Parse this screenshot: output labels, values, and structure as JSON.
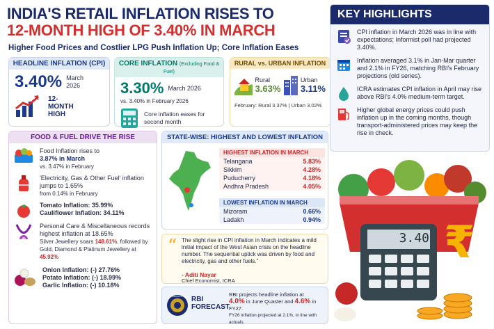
{
  "title_line1": "INDIA'S RETAIL INFLATION RISES TO",
  "title_line2": "12-MONTH HIGH OF 3.40% IN MARCH",
  "subtitle": "Higher Food Prices and Costlier LPG Push Inflation Up; Core Inflation Eases",
  "headline": {
    "label": "HEADLINE INFLATION (CPI)",
    "value": "3.40%",
    "period": "March 2026",
    "tag": "12-MONTH HIGH"
  },
  "core": {
    "label": "CORE INFLATION",
    "label_note": "(Excluding Food & Fuel)",
    "value": "3.30%",
    "period": "March 2026",
    "compare": "vs. 3.40% in February 2026",
    "note": "Core inflation eases for second month"
  },
  "rural_urban": {
    "label": "RURAL vs. URBAN INFLATION",
    "rural_label": "Rural",
    "rural_value": "3.63%",
    "urban_label": "Urban",
    "urban_value": "3.11%",
    "feb": "February: Rural 3.37% | Urban 3.02%"
  },
  "highlights": {
    "heading": "KEY HIGHLIGHTS",
    "items": [
      "CPI inflation in March 2026 was in line with expectations; Informist poll had projected 3.40%.",
      "Inflation averaged 3.1% in Jan-Mar quarter and 2.1% in FY26, matching RBI's February projections (old series).",
      "ICRA estimates CPI inflation in April may rise above RBI's 4.0% medium-term target.",
      "Higher global energy prices could push inflation up in the coming months, though transport-administered prices may keep the rise in check."
    ]
  },
  "food_fuel": {
    "heading": "FOOD & FUEL DRIVE THE RISE",
    "food1": "Food Inflation rises to",
    "food2": "3.87% in March",
    "food3": "vs. 3.47% in February",
    "fuel1": "'Electricity, Gas & Other Fuel' inflation jumps to 1.65%",
    "fuel2": "from 0.14% in February",
    "tomato": "Tomato Inflation: 35.99%",
    "cauliflower": "Cauliflower Inflation: 34.11%",
    "personal1": "Personal Care & Miscellaneous records highest inflation at 18.65%",
    "personal2a": "Silver Jewellery soars ",
    "silver": "148.61%",
    "personal2b": ", followed by Gold, Diamond & Platinum Jewellery at ",
    "gold": "45.92%",
    "onion": "Onion Inflation: (-) 27.76%",
    "potato": "Potato Inflation: (-) 18.99%",
    "garlic": "Garlic Inflation: (-) 10.18%"
  },
  "states": {
    "heading": "STATE-WISE: HIGHEST AND LOWEST INFLATION",
    "high_heading": "HIGHEST INFLATION IN MARCH",
    "high": [
      {
        "name": "Telangana",
        "value": "5.83%"
      },
      {
        "name": "Sikkim",
        "value": "4.28%"
      },
      {
        "name": "Puducherry",
        "value": "4.18%"
      },
      {
        "name": "Andhra Pradesh",
        "value": "4.05%"
      }
    ],
    "low_heading": "LOWEST INFLATION IN MARCH",
    "low": [
      {
        "name": "Mizoram",
        "value": "0.66%"
      },
      {
        "name": "Ladakh",
        "value": "0.94%"
      }
    ]
  },
  "quote": {
    "text": "The slight rise in CPI inflation in March indicates a mild initial impact of the West Asian crisis on the headline number. The sequential uptick was driven by food and electricity, gas and other fuels.\"",
    "author": "- Aditi Nayar",
    "role": "Chief Economist, ICRA"
  },
  "rbi": {
    "label1": "RBI",
    "label2": "FORECAST",
    "line1": "RBI projects headline inflation at",
    "v1": "4.0%",
    "t1": " in June Quaster and ",
    "v2": "4.6%",
    "t2": " in FY27.",
    "line3": "FY26 inflation projected at 2.1%, in line with actuals.",
    "seal_text": "RESERVE BANK OF INDIA"
  },
  "calculator_display": "3.40",
  "rupee_sign": "₹"
}
